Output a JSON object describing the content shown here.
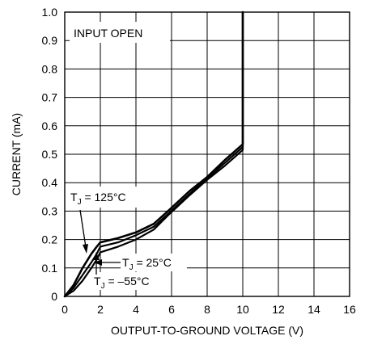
{
  "chart_data": {
    "type": "line",
    "title": "",
    "xlabel": "OUTPUT-TO-GROUND VOLTAGE (V)",
    "ylabel": "CURRENT (mA)",
    "xlim": [
      0,
      16
    ],
    "ylim": [
      0,
      1.0
    ],
    "xticks": [
      0,
      2,
      4,
      6,
      8,
      10,
      12,
      14,
      16
    ],
    "xtick_labels": [
      "0",
      "2",
      "4",
      "6",
      "8",
      "10",
      "12",
      "14",
      "16"
    ],
    "yticks": [
      0,
      0.1,
      0.2,
      0.3,
      0.4,
      0.5,
      0.6,
      0.7,
      0.8,
      0.9,
      1.0
    ],
    "ytick_labels": [
      "0",
      "0.1",
      "0.2",
      "0.3",
      "0.4",
      "0.5",
      "0.6",
      "0.7",
      "0.8",
      "0.9",
      "1.0"
    ],
    "grid": true,
    "legend": "none",
    "series": [
      {
        "x": [
          0,
          0.5,
          1.0,
          1.5,
          1.8,
          2.0,
          3,
          4,
          5,
          5.8,
          7,
          8,
          9,
          10,
          10,
          10
        ],
        "y": [
          0,
          0.04,
          0.1,
          0.15,
          0.175,
          0.19,
          0.205,
          0.225,
          0.255,
          0.3,
          0.37,
          0.42,
          0.48,
          0.535,
          0.54,
          1.0
        ]
      },
      {
        "x": [
          0,
          0.5,
          1.0,
          1.5,
          1.8,
          2.0,
          3,
          4,
          5,
          5.8,
          7,
          8,
          9,
          10,
          10,
          10
        ],
        "y": [
          0,
          0.03,
          0.075,
          0.12,
          0.15,
          0.175,
          0.19,
          0.215,
          0.245,
          0.29,
          0.36,
          0.415,
          0.47,
          0.525,
          0.53,
          1.0
        ]
      },
      {
        "x": [
          0,
          0.5,
          1.0,
          1.5,
          1.8,
          2.0,
          3,
          4,
          5,
          5.8,
          7,
          8,
          9,
          10,
          10,
          10
        ],
        "y": [
          0,
          0.02,
          0.055,
          0.1,
          0.13,
          0.155,
          0.175,
          0.2,
          0.235,
          0.285,
          0.355,
          0.41,
          0.46,
          0.515,
          0.52,
          1.0
        ]
      }
    ],
    "annotations": {
      "condition": "INPUT OPEN",
      "tj_125": {
        "prefix": "T",
        "sub": "J",
        "suffix": " = 125°C"
      },
      "tj_25": {
        "prefix": "T",
        "sub": "J",
        "suffix": " = 25°C"
      },
      "tj_m55": {
        "prefix": "T",
        "sub": "J",
        "suffix": " = –55°C"
      }
    }
  }
}
